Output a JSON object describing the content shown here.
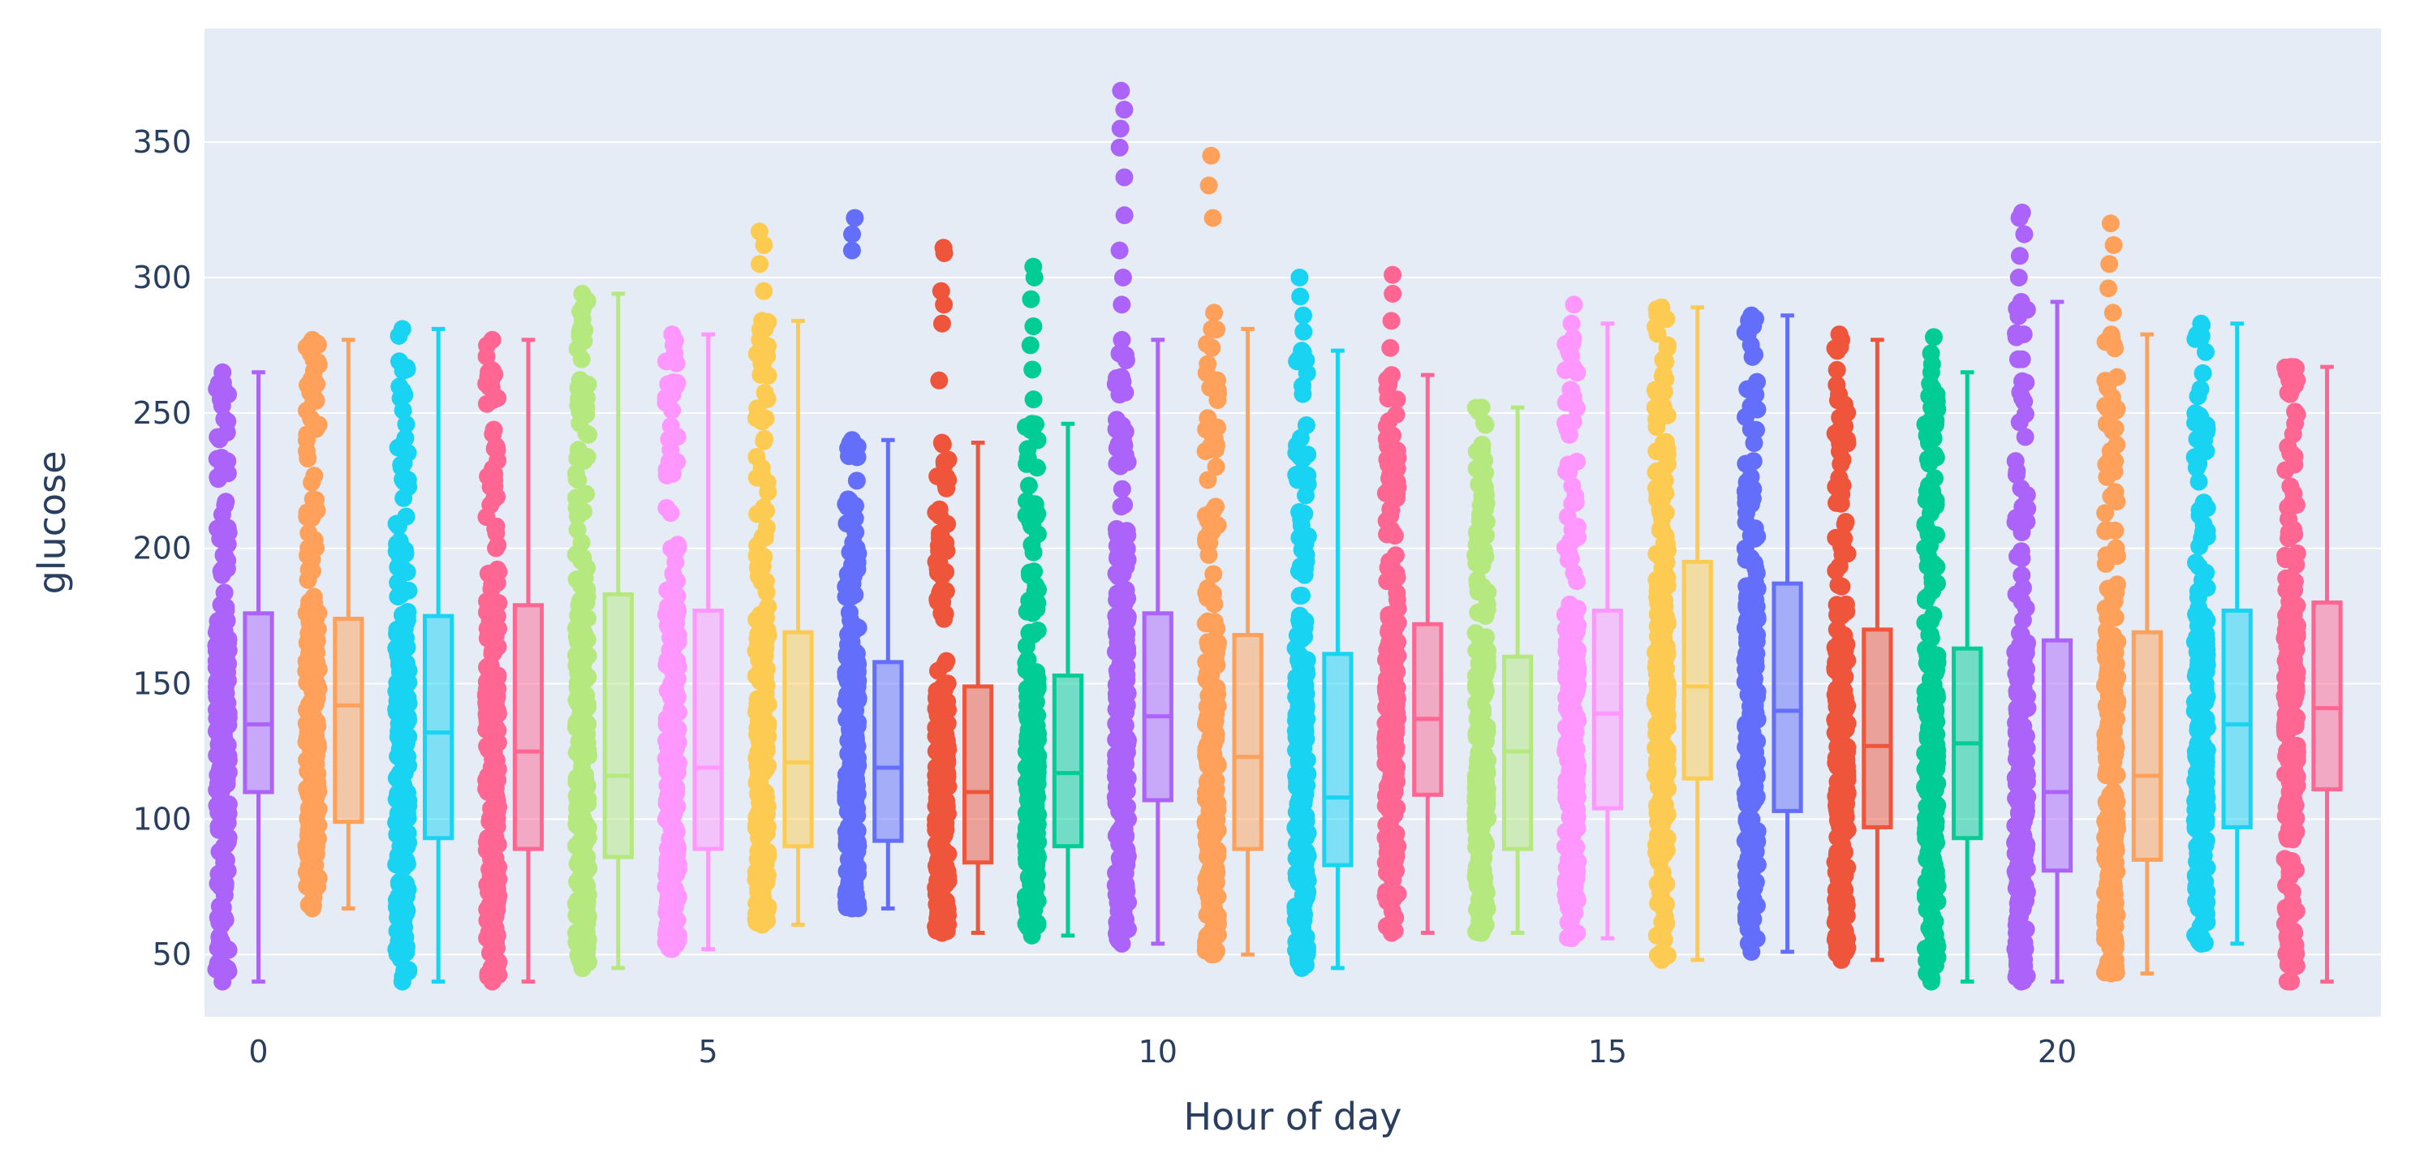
{
  "chart_data": {
    "type": "box",
    "title": "",
    "xlabel": "Hour of day",
    "ylabel": "glucose",
    "xlim": [
      -0.6,
      23.6
    ],
    "ylim": [
      27,
      392
    ],
    "x_ticks": [
      0,
      5,
      10,
      15,
      20
    ],
    "y_ticks": [
      50,
      100,
      150,
      200,
      250,
      300,
      350
    ],
    "grid": true,
    "legend": "none",
    "boxpoints": "all",
    "background_color": "#e5ecf6",
    "colors": [
      "#ab63fa",
      "#ffa15a",
      "#19d3f3",
      "#ff6692",
      "#b6e880",
      "#ff97ff",
      "#fecb52",
      "#636efa",
      "#ef553b",
      "#00cc96"
    ],
    "categories": [
      0,
      1,
      2,
      3,
      4,
      5,
      6,
      7,
      8,
      9,
      10,
      11,
      12,
      13,
      14,
      15,
      16,
      17,
      18,
      19,
      20,
      21,
      22,
      23
    ],
    "boxes": [
      {
        "hour": 0,
        "min": 40,
        "q1": 110,
        "median": 135,
        "q3": 176,
        "max": 265,
        "outliers": []
      },
      {
        "hour": 1,
        "min": 67,
        "q1": 99,
        "median": 142,
        "q3": 174,
        "max": 277,
        "outliers": []
      },
      {
        "hour": 2,
        "min": 40,
        "q1": 93,
        "median": 132,
        "q3": 175,
        "max": 281,
        "outliers": []
      },
      {
        "hour": 3,
        "min": 40,
        "q1": 89,
        "median": 125,
        "q3": 179,
        "max": 277,
        "outliers": []
      },
      {
        "hour": 4,
        "min": 45,
        "q1": 86,
        "median": 116,
        "q3": 183,
        "max": 294,
        "outliers": []
      },
      {
        "hour": 5,
        "min": 52,
        "q1": 89,
        "median": 119,
        "q3": 177,
        "max": 279,
        "outliers": []
      },
      {
        "hour": 6,
        "min": 61,
        "q1": 90,
        "median": 121,
        "q3": 169,
        "max": 284,
        "outliers": [
          295,
          305,
          312,
          317
        ]
      },
      {
        "hour": 7,
        "min": 67,
        "q1": 92,
        "median": 119,
        "q3": 158,
        "max": 240,
        "outliers": [
          310,
          316,
          322
        ]
      },
      {
        "hour": 8,
        "min": 58,
        "q1": 84,
        "median": 110,
        "q3": 149,
        "max": 239,
        "outliers": [
          262,
          283,
          290,
          295,
          309,
          311
        ]
      },
      {
        "hour": 9,
        "min": 57,
        "q1": 90,
        "median": 117,
        "q3": 153,
        "max": 246,
        "outliers": [
          255,
          266,
          275,
          282,
          292,
          300,
          304
        ]
      },
      {
        "hour": 10,
        "min": 54,
        "q1": 107,
        "median": 138,
        "q3": 176,
        "max": 277,
        "outliers": [
          290,
          300,
          310,
          323,
          337,
          348,
          355,
          362,
          369
        ]
      },
      {
        "hour": 11,
        "min": 50,
        "q1": 89,
        "median": 123,
        "q3": 168,
        "max": 281,
        "outliers": [
          287,
          322,
          334,
          345
        ]
      },
      {
        "hour": 12,
        "min": 45,
        "q1": 83,
        "median": 108,
        "q3": 161,
        "max": 273,
        "outliers": [
          280,
          286,
          293,
          300
        ]
      },
      {
        "hour": 13,
        "min": 58,
        "q1": 109,
        "median": 137,
        "q3": 172,
        "max": 264,
        "outliers": [
          274,
          284,
          294,
          301
        ]
      },
      {
        "hour": 14,
        "min": 58,
        "q1": 89,
        "median": 125,
        "q3": 160,
        "max": 252,
        "outliers": []
      },
      {
        "hour": 15,
        "min": 56,
        "q1": 104,
        "median": 139,
        "q3": 177,
        "max": 283,
        "outliers": [
          290
        ]
      },
      {
        "hour": 16,
        "min": 48,
        "q1": 115,
        "median": 149,
        "q3": 195,
        "max": 289,
        "outliers": []
      },
      {
        "hour": 17,
        "min": 51,
        "q1": 103,
        "median": 140,
        "q3": 187,
        "max": 286,
        "outliers": []
      },
      {
        "hour": 18,
        "min": 48,
        "q1": 97,
        "median": 127,
        "q3": 170,
        "max": 277,
        "outliers": [
          279
        ]
      },
      {
        "hour": 19,
        "min": 40,
        "q1": 93,
        "median": 128,
        "q3": 163,
        "max": 265,
        "outliers": [
          268,
          272,
          278
        ]
      },
      {
        "hour": 20,
        "min": 40,
        "q1": 81,
        "median": 110,
        "q3": 166,
        "max": 291,
        "outliers": [
          300,
          308,
          316,
          322,
          324
        ]
      },
      {
        "hour": 21,
        "min": 43,
        "q1": 85,
        "median": 116,
        "q3": 169,
        "max": 279,
        "outliers": [
          287,
          296,
          305,
          312,
          320
        ]
      },
      {
        "hour": 22,
        "min": 54,
        "q1": 97,
        "median": 135,
        "q3": 177,
        "max": 283,
        "outliers": []
      },
      {
        "hour": 23,
        "min": 40,
        "q1": 111,
        "median": 141,
        "q3": 180,
        "max": 267,
        "outliers": []
      }
    ]
  }
}
